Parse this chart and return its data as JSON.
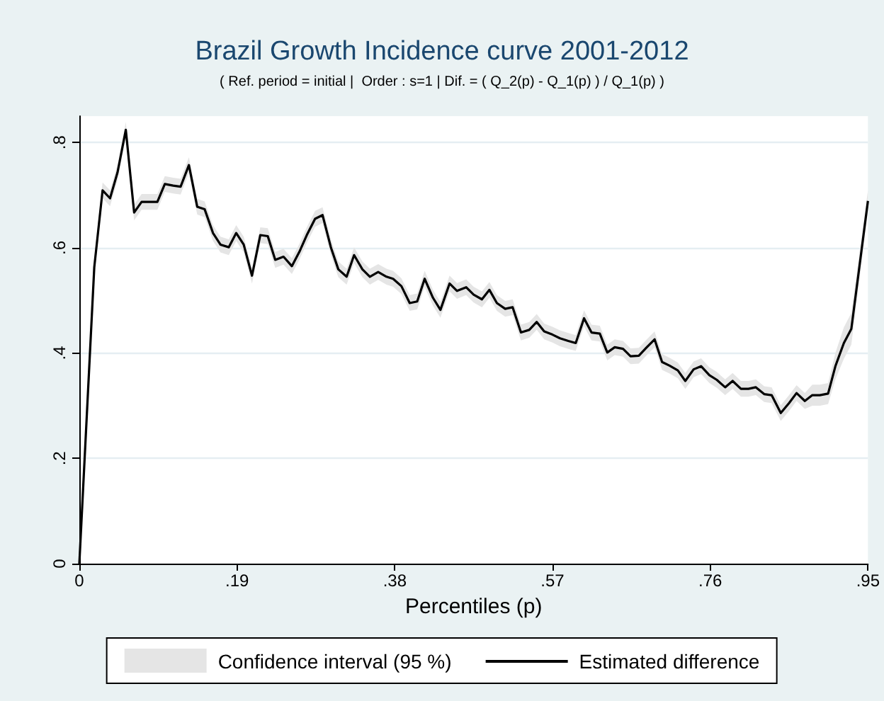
{
  "chart_data": {
    "type": "line",
    "title": "Brazil Growth Incidence curve 2001-2012",
    "subtitle": "( Ref. period = initial |  Order : s=1 | Dif. = ( Q_2(p) - Q_1(p) ) / Q_1(p) )",
    "xlabel": "Percentiles (p)",
    "x": [
      0,
      0.018,
      0.028,
      0.037,
      0.046,
      0.056,
      0.066,
      0.075,
      0.084,
      0.094,
      0.103,
      0.113,
      0.122,
      0.132,
      0.142,
      0.151,
      0.161,
      0.17,
      0.18,
      0.189,
      0.198,
      0.208,
      0.218,
      0.227,
      0.236,
      0.246,
      0.256,
      0.265,
      0.274,
      0.284,
      0.293,
      0.303,
      0.312,
      0.322,
      0.331,
      0.341,
      0.35,
      0.36,
      0.37,
      0.378,
      0.388,
      0.398,
      0.407,
      0.416,
      0.426,
      0.435,
      0.446,
      0.455,
      0.466,
      0.475,
      0.485,
      0.494,
      0.503,
      0.513,
      0.522,
      0.532,
      0.542,
      0.551,
      0.56,
      0.57,
      0.579,
      0.589,
      0.598,
      0.608,
      0.617,
      0.627,
      0.636,
      0.645,
      0.655,
      0.664,
      0.674,
      0.683,
      0.693,
      0.702,
      0.711,
      0.721,
      0.73,
      0.74,
      0.749,
      0.759,
      0.768,
      0.778,
      0.787,
      0.797,
      0.806,
      0.815,
      0.825,
      0.834,
      0.845,
      0.855,
      0.864,
      0.874,
      0.883,
      0.892,
      0.902,
      0.911,
      0.921,
      0.93,
      0.95
    ],
    "series": [
      {
        "name": "Estimated difference",
        "color": "#000000",
        "lower": [
          0,
          0.548,
          0.694,
          0.679,
          0.728,
          0.809,
          0.652,
          0.672,
          0.672,
          0.672,
          0.706,
          0.703,
          0.701,
          0.742,
          0.663,
          0.658,
          0.613,
          0.591,
          0.586,
          0.613,
          0.591,
          0.532,
          0.609,
          0.607,
          0.562,
          0.568,
          0.55,
          0.577,
          0.609,
          0.64,
          0.647,
          0.586,
          0.544,
          0.53,
          0.571,
          0.544,
          0.53,
          0.539,
          0.53,
          0.526,
          0.512,
          0.48,
          0.483,
          0.526,
          0.49,
          0.467,
          0.517,
          0.503,
          0.51,
          0.496,
          0.487,
          0.505,
          0.48,
          0.469,
          0.472,
          0.424,
          0.429,
          0.444,
          0.426,
          0.42,
          0.413,
          0.408,
          0.404,
          0.451,
          0.424,
          0.422,
          0.386,
          0.396,
          0.393,
          0.379,
          0.38,
          0.395,
          0.411,
          0.368,
          0.361,
          0.352,
          0.332,
          0.354,
          0.36,
          0.343,
          0.334,
          0.32,
          0.332,
          0.317,
          0.317,
          0.32,
          0.307,
          0.305,
          0.271,
          0.29,
          0.309,
          0.294,
          0.3,
          0.3,
          0.303,
          0.351,
          0.389,
          0.416,
          0.669
        ],
        "upper": [
          0,
          0.578,
          0.724,
          0.709,
          0.758,
          0.839,
          0.682,
          0.702,
          0.702,
          0.702,
          0.736,
          0.733,
          0.731,
          0.772,
          0.693,
          0.688,
          0.643,
          0.621,
          0.616,
          0.643,
          0.621,
          0.562,
          0.639,
          0.637,
          0.592,
          0.598,
          0.58,
          0.607,
          0.639,
          0.67,
          0.677,
          0.616,
          0.574,
          0.56,
          0.601,
          0.574,
          0.56,
          0.569,
          0.56,
          0.556,
          0.542,
          0.51,
          0.513,
          0.556,
          0.52,
          0.497,
          0.547,
          0.533,
          0.54,
          0.526,
          0.517,
          0.535,
          0.51,
          0.499,
          0.502,
          0.454,
          0.459,
          0.474,
          0.456,
          0.45,
          0.443,
          0.438,
          0.434,
          0.481,
          0.454,
          0.452,
          0.416,
          0.426,
          0.423,
          0.409,
          0.41,
          0.425,
          0.441,
          0.398,
          0.391,
          0.382,
          0.362,
          0.384,
          0.39,
          0.373,
          0.364,
          0.35,
          0.362,
          0.347,
          0.347,
          0.35,
          0.337,
          0.335,
          0.301,
          0.32,
          0.339,
          0.324,
          0.34,
          0.34,
          0.343,
          0.401,
          0.449,
          0.476,
          0.709
        ],
        "values": [
          0,
          0.563,
          0.709,
          0.694,
          0.743,
          0.824,
          0.667,
          0.687,
          0.687,
          0.687,
          0.721,
          0.718,
          0.716,
          0.757,
          0.678,
          0.673,
          0.628,
          0.606,
          0.601,
          0.628,
          0.606,
          0.547,
          0.624,
          0.622,
          0.577,
          0.583,
          0.565,
          0.592,
          0.624,
          0.655,
          0.662,
          0.601,
          0.559,
          0.545,
          0.586,
          0.559,
          0.545,
          0.554,
          0.545,
          0.541,
          0.527,
          0.495,
          0.498,
          0.541,
          0.505,
          0.482,
          0.532,
          0.518,
          0.525,
          0.511,
          0.502,
          0.52,
          0.495,
          0.484,
          0.487,
          0.439,
          0.444,
          0.459,
          0.441,
          0.435,
          0.428,
          0.423,
          0.419,
          0.466,
          0.439,
          0.437,
          0.401,
          0.411,
          0.408,
          0.394,
          0.395,
          0.41,
          0.426,
          0.383,
          0.376,
          0.367,
          0.347,
          0.369,
          0.375,
          0.358,
          0.349,
          0.335,
          0.347,
          0.332,
          0.332,
          0.335,
          0.322,
          0.32,
          0.286,
          0.305,
          0.324,
          0.309,
          0.32,
          0.32,
          0.323,
          0.376,
          0.419,
          0.446,
          0.689
        ]
      }
    ],
    "xlim": [
      0,
      0.95
    ],
    "xticks": [
      0,
      {
        "value": 0.19,
        "label": ".19"
      },
      {
        "value": 0.38,
        "label": ".38"
      },
      {
        "value": 0.57,
        "label": ".57"
      },
      {
        "value": 0.76,
        "label": ".76"
      },
      {
        "value": 0.95,
        "label": ".95"
      }
    ],
    "ylim": [
      0,
      0.85
    ],
    "yticks": [
      0,
      {
        "value": 0.2,
        "label": ".2"
      },
      {
        "value": 0.4,
        "label": ".4"
      },
      {
        "value": 0.6,
        "label": ".6"
      },
      {
        "value": 0.8,
        "label": ".8"
      }
    ],
    "annotations": [
      "Confidence interval (95 %)"
    ],
    "grid": "y",
    "legend": "bottom",
    "marker": "none"
  }
}
